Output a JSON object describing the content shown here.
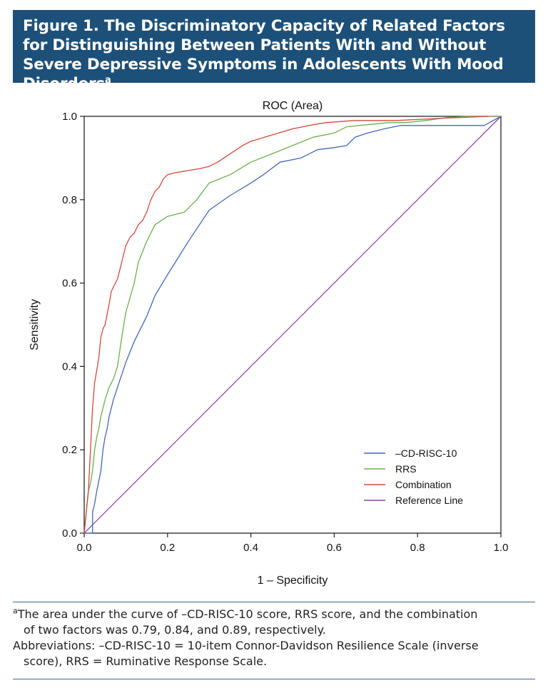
{
  "header": {
    "title": "Figure 1. The Discriminatory Capacity of Related Factors for Distinguishing Between Patients With and Without Severe Depressive Symptoms in Adolescents With Mood Disorders",
    "title_sup": "a",
    "background_color": "#1d5079"
  },
  "chart_data": {
    "type": "line",
    "title": "ROC (Area)",
    "xlabel": "1 – Specificity",
    "ylabel": "Sensitivity",
    "xlim": [
      0,
      1
    ],
    "ylim": [
      0,
      1
    ],
    "xticks": [
      "0.0",
      "0.2",
      "0.4",
      "0.6",
      "0.8",
      "1.0"
    ],
    "yticks": [
      "0.0",
      "0.2",
      "0.4",
      "0.6",
      "0.8",
      "1.0"
    ],
    "grid": false,
    "legend_position": "bottom-right",
    "series": [
      {
        "name": "–CD-RISC-10",
        "color": "#4466bb",
        "x": [
          0,
          0.02,
          0.02,
          0.025,
          0.03,
          0.04,
          0.045,
          0.05,
          0.055,
          0.06,
          0.065,
          0.07,
          0.08,
          0.09,
          0.1,
          0.12,
          0.15,
          0.17,
          0.2,
          0.25,
          0.3,
          0.35,
          0.4,
          0.43,
          0.47,
          0.52,
          0.54,
          0.56,
          0.6,
          0.63,
          0.65,
          0.68,
          0.72,
          0.76,
          0.8,
          0.85,
          0.9,
          0.96,
          1.0
        ],
        "y": [
          0,
          0.0,
          0.05,
          0.07,
          0.1,
          0.15,
          0.2,
          0.23,
          0.25,
          0.28,
          0.3,
          0.32,
          0.35,
          0.38,
          0.41,
          0.46,
          0.52,
          0.57,
          0.62,
          0.7,
          0.775,
          0.81,
          0.84,
          0.86,
          0.89,
          0.9,
          0.91,
          0.92,
          0.925,
          0.93,
          0.95,
          0.96,
          0.97,
          0.978,
          0.978,
          0.978,
          0.978,
          0.978,
          1.0
        ]
      },
      {
        "name": "RRS",
        "color": "#6ab04c",
        "x": [
          0,
          0.01,
          0.015,
          0.02,
          0.025,
          0.03,
          0.035,
          0.04,
          0.045,
          0.05,
          0.06,
          0.07,
          0.08,
          0.09,
          0.1,
          0.12,
          0.13,
          0.15,
          0.17,
          0.2,
          0.24,
          0.27,
          0.3,
          0.35,
          0.4,
          0.45,
          0.5,
          0.55,
          0.6,
          0.63,
          0.68,
          0.73,
          0.77,
          0.82,
          0.87,
          0.92,
          1.0
        ],
        "y": [
          0,
          0.1,
          0.12,
          0.15,
          0.2,
          0.23,
          0.25,
          0.28,
          0.3,
          0.32,
          0.35,
          0.37,
          0.4,
          0.47,
          0.53,
          0.6,
          0.65,
          0.7,
          0.74,
          0.76,
          0.77,
          0.8,
          0.84,
          0.86,
          0.89,
          0.91,
          0.93,
          0.95,
          0.96,
          0.975,
          0.98,
          0.985,
          0.985,
          0.99,
          0.997,
          1.0,
          1.0
        ]
      },
      {
        "name": "Combination",
        "color": "#d14a3c",
        "x": [
          0,
          0.01,
          0.015,
          0.02,
          0.025,
          0.03,
          0.035,
          0.04,
          0.045,
          0.05,
          0.06,
          0.065,
          0.07,
          0.08,
          0.09,
          0.1,
          0.11,
          0.12,
          0.13,
          0.14,
          0.15,
          0.16,
          0.17,
          0.18,
          0.19,
          0.2,
          0.22,
          0.25,
          0.28,
          0.3,
          0.32,
          0.35,
          0.38,
          0.4,
          0.45,
          0.5,
          0.55,
          0.58,
          0.65,
          0.75,
          0.85,
          0.97
        ],
        "y": [
          0,
          0.1,
          0.2,
          0.3,
          0.36,
          0.39,
          0.42,
          0.47,
          0.49,
          0.5,
          0.55,
          0.58,
          0.59,
          0.61,
          0.65,
          0.69,
          0.71,
          0.72,
          0.74,
          0.75,
          0.77,
          0.8,
          0.82,
          0.83,
          0.85,
          0.86,
          0.865,
          0.87,
          0.875,
          0.88,
          0.89,
          0.91,
          0.93,
          0.94,
          0.955,
          0.97,
          0.98,
          0.985,
          0.99,
          0.99,
          0.995,
          1.0
        ]
      },
      {
        "name": "Reference Line",
        "color": "#8e44ad",
        "x": [
          0,
          1
        ],
        "y": [
          0,
          1
        ]
      }
    ]
  },
  "footnotes": {
    "note_marker": "a",
    "note": "The area under the curve of –CD-RISC-10 score, RRS score, and the combination",
    "note_cont": "of two factors was 0.79, 0.84, and 0.89, respectively.",
    "abbreviations": "Abbreviations: –CD-RISC-10 = 10-item Connor-Davidson Resilience Scale (inverse",
    "abbreviations_cont": "score), RRS = Ruminative Response Scale."
  }
}
